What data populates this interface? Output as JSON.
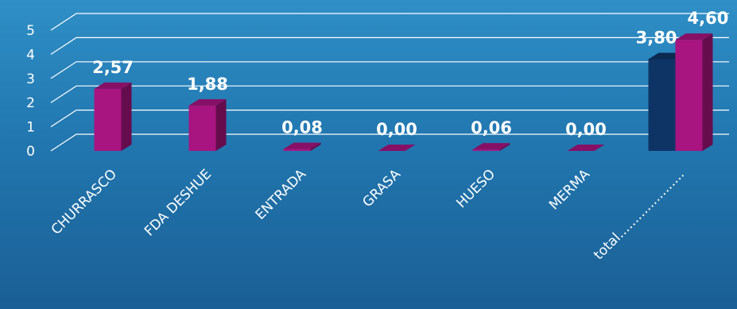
{
  "chart_data": {
    "type": "bar",
    "style": "3d-clustered-column",
    "categories": [
      "CHURRASCO",
      "FDA DESHUE",
      "ENTRADA",
      "GRASA",
      "HUESO",
      "MERMA",
      "total....................."
    ],
    "y_ticks": [
      "0",
      "1",
      "2",
      "3",
      "4",
      "5"
    ],
    "ylim": [
      0,
      5
    ],
    "grid": true,
    "series": [
      {
        "name": "",
        "color": "#0e3466",
        "values": [
          null,
          null,
          null,
          null,
          null,
          null,
          3.8
        ],
        "labels": [
          "",
          "",
          "",
          "",
          "",
          "",
          "3,80"
        ]
      },
      {
        "name": "",
        "color": "#a81480",
        "values": [
          2.57,
          1.88,
          0.08,
          0.0,
          0.06,
          0.0,
          4.6
        ],
        "labels": [
          "2,57",
          "1,88",
          "0,08",
          "0,00",
          "0,06",
          "0,00",
          "4,60"
        ]
      }
    ]
  }
}
